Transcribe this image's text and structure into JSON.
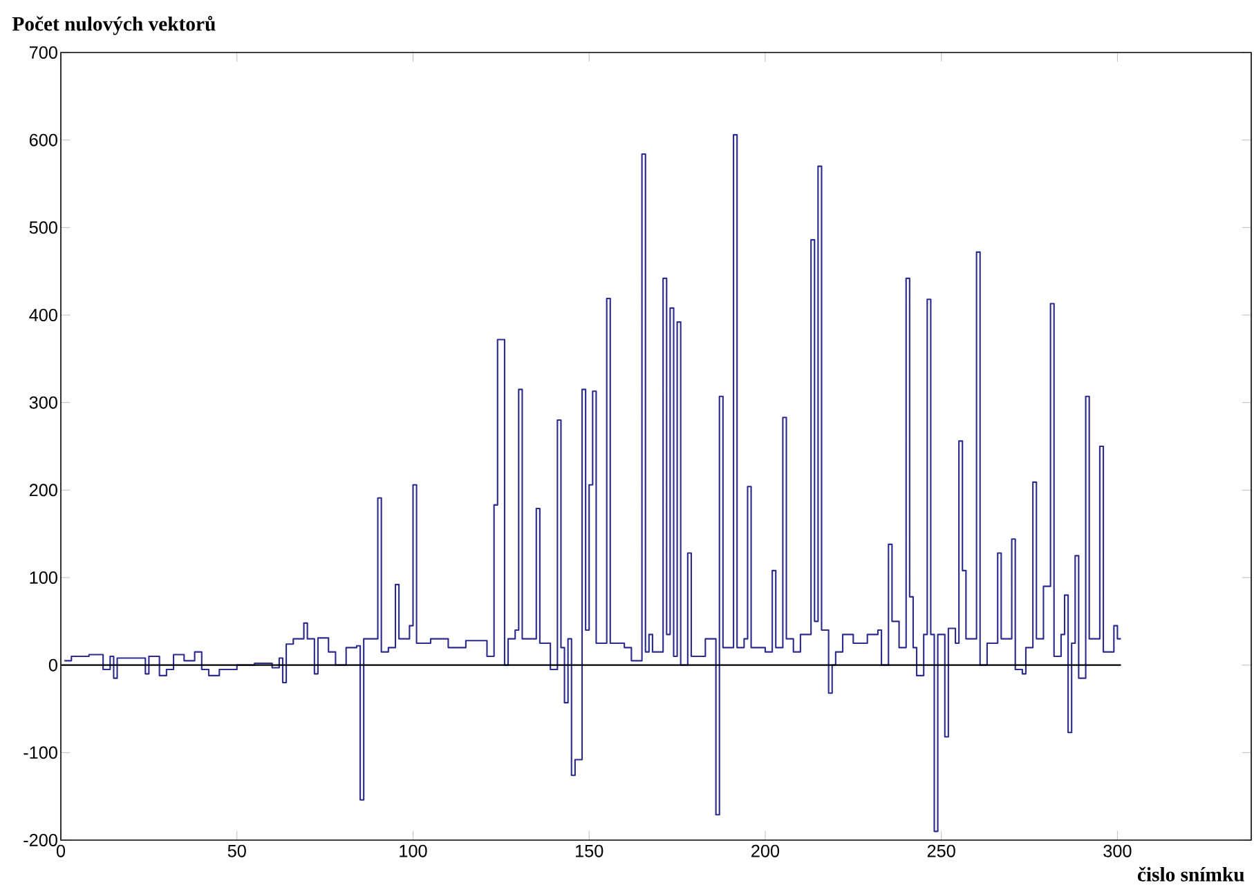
{
  "chart_data": {
    "type": "step",
    "xlabel": "čislo snímku",
    "ylabel": "Počet nulových vektorů",
    "xlim": [
      0,
      338
    ],
    "ylim": [
      -200,
      700
    ],
    "xticks": [
      0,
      50,
      100,
      150,
      200,
      250,
      300
    ],
    "yticks": [
      -200,
      -100,
      0,
      100,
      200,
      300,
      400,
      500,
      600,
      700
    ],
    "series": [
      {
        "color": "#2b2b90",
        "x": [
          1,
          3,
          8,
          12,
          14,
          15,
          16,
          20,
          24,
          25,
          28,
          30,
          32,
          35,
          38,
          40,
          42,
          45,
          50,
          55,
          60,
          62,
          63,
          64,
          66,
          69,
          70,
          72,
          73,
          76,
          78,
          81,
          84,
          85,
          86,
          90,
          91,
          93,
          95,
          96,
          99,
          100,
          101,
          105,
          110,
          115,
          121,
          123,
          124,
          126,
          127,
          129,
          130,
          131,
          135,
          136,
          139,
          141,
          142,
          143,
          144,
          145,
          146,
          148,
          149,
          150,
          151,
          152,
          155,
          156,
          160,
          162,
          165,
          166,
          167,
          168,
          171,
          172,
          173,
          174,
          175,
          176,
          178,
          179,
          183,
          186,
          187,
          188,
          191,
          192,
          194,
          195,
          196,
          200,
          202,
          203,
          205,
          206,
          208,
          210,
          213,
          214,
          215,
          216,
          218,
          219,
          220,
          222,
          225,
          229,
          232,
          233,
          235,
          236,
          238,
          240,
          241,
          242,
          243,
          245,
          246,
          247,
          248,
          249,
          251,
          252,
          254,
          255,
          256,
          257,
          260,
          261,
          263,
          266,
          267,
          270,
          271,
          273,
          274,
          276,
          277,
          279,
          281,
          282,
          284,
          285,
          286,
          287,
          288,
          289,
          291,
          292,
          295,
          296,
          299,
          300,
          301
        ],
        "values": [
          5,
          10,
          12,
          -5,
          10,
          -15,
          8,
          8,
          -10,
          10,
          -12,
          -5,
          12,
          5,
          15,
          -5,
          -12,
          -5,
          0,
          2,
          -3,
          8,
          -20,
          24,
          30,
          48,
          30,
          -10,
          31,
          15,
          0,
          20,
          22,
          -154,
          30,
          191,
          15,
          20,
          92,
          30,
          45,
          206,
          25,
          30,
          20,
          28,
          10,
          183,
          372,
          0,
          30,
          40,
          315,
          30,
          179,
          25,
          -5,
          280,
          20,
          -43,
          30,
          -126,
          -108,
          315,
          40,
          206,
          313,
          25,
          419,
          25,
          20,
          5,
          584,
          15,
          35,
          15,
          442,
          35,
          408,
          10,
          392,
          0,
          128,
          10,
          30,
          -171,
          307,
          20,
          606,
          20,
          30,
          204,
          20,
          15,
          108,
          20,
          283,
          30,
          15,
          35,
          486,
          50,
          570,
          40,
          -32,
          0,
          15,
          35,
          25,
          35,
          40,
          0,
          138,
          50,
          20,
          442,
          78,
          20,
          -12,
          35,
          418,
          35,
          -190,
          35,
          -82,
          42,
          25,
          256,
          108,
          30,
          472,
          0,
          25,
          128,
          30,
          144,
          -5,
          -10,
          20,
          209,
          30,
          90,
          413,
          10,
          35,
          80,
          -77,
          25,
          125,
          -15,
          307,
          30,
          250,
          15,
          45,
          30,
          30
        ]
      },
      {
        "type": "line",
        "color": "#000000",
        "x": [
          0,
          301
        ],
        "values": [
          0,
          0
        ]
      }
    ]
  }
}
